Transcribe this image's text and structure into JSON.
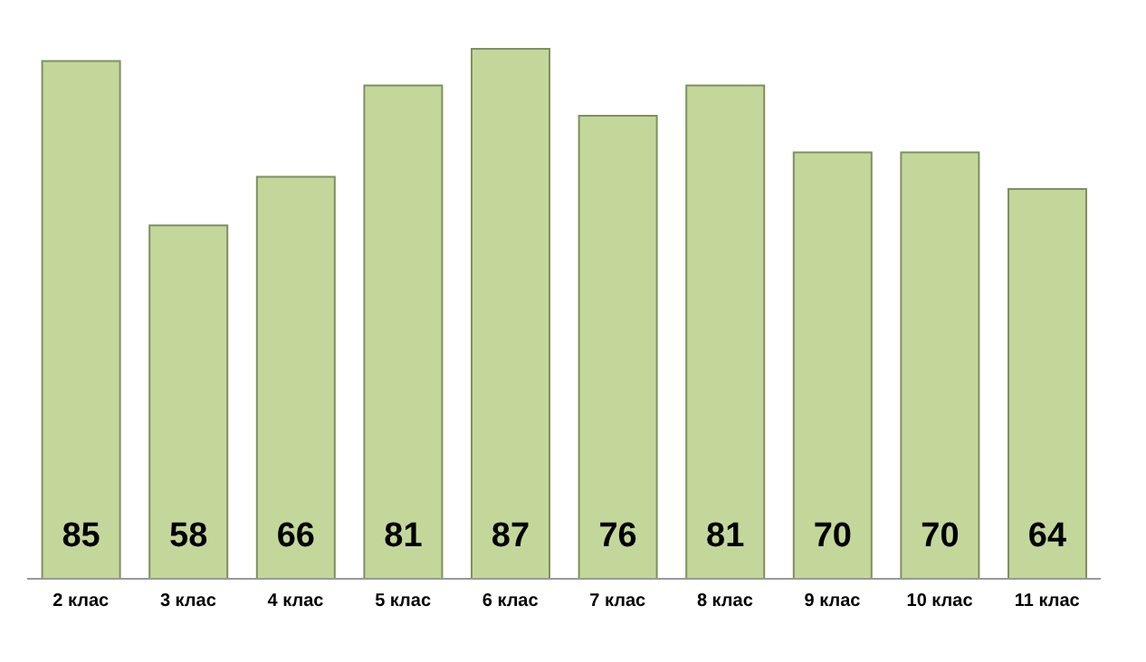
{
  "chart_data": {
    "type": "bar",
    "categories": [
      "2 клас",
      "3 клас",
      "4 клас",
      "5 клас",
      "6 клас",
      "7 клас",
      "8 клас",
      "9 клас",
      "10 клас",
      "11 клас"
    ],
    "values": [
      85,
      58,
      66,
      81,
      87,
      76,
      81,
      70,
      70,
      64
    ],
    "color": "#c4d79b",
    "data_labels": true
  }
}
